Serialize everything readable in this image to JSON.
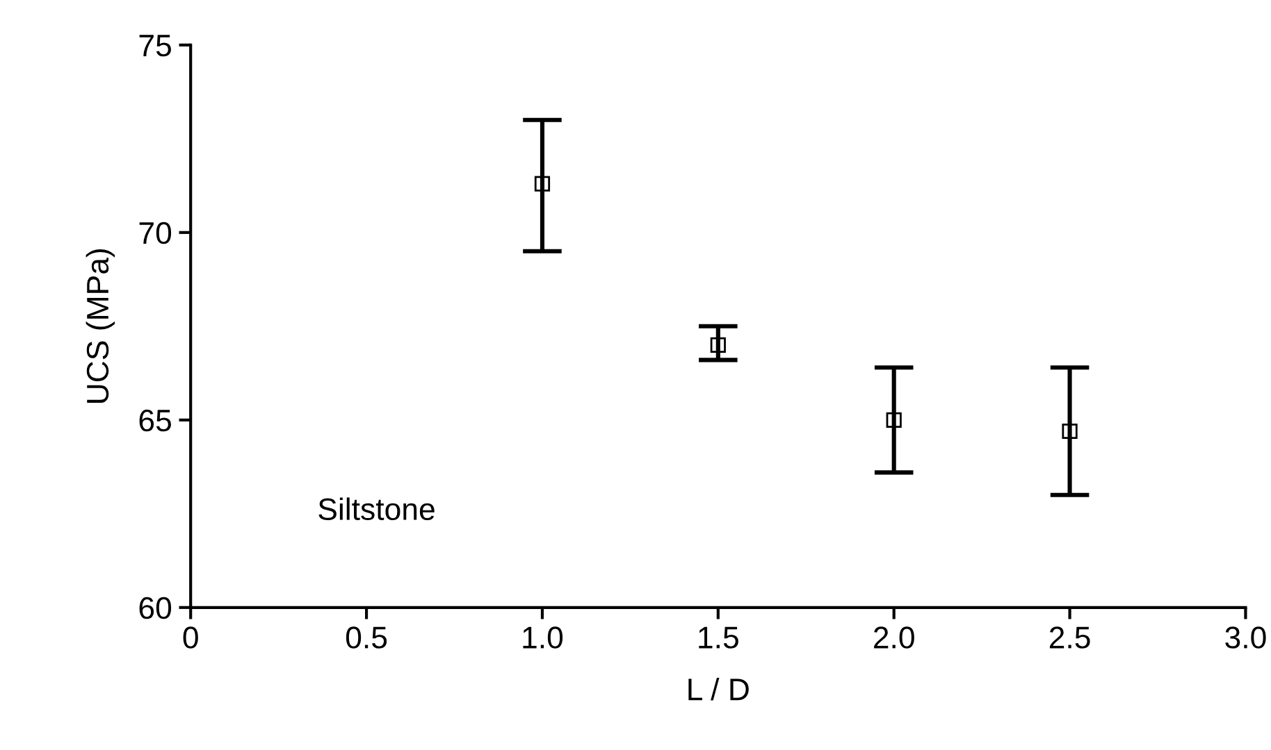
{
  "chart_data": {
    "type": "scatter",
    "xlabel": "L / D",
    "ylabel": "UCS (MPa)",
    "x": [
      1.0,
      1.5,
      2.0,
      2.5
    ],
    "values": [
      71.3,
      67.0,
      65.0,
      64.7
    ],
    "errors": [
      [
        69.5,
        73.0
      ],
      [
        66.6,
        67.5
      ],
      [
        63.6,
        66.4
      ],
      [
        63.0,
        66.4
      ]
    ],
    "color": "#000000",
    "marker": "square",
    "xlim": [
      0,
      3.0
    ],
    "xticks": [
      0,
      0.5,
      {
        "value": 1.0,
        "label": "1.0"
      },
      1.5,
      {
        "value": 2.0,
        "label": "2.0"
      },
      2.5,
      {
        "value": 3.0,
        "label": "3.0"
      }
    ],
    "ylim": [
      60,
      75
    ],
    "yticks": [
      60,
      65,
      70,
      75
    ],
    "annotations": [
      "Siltstone"
    ],
    "grid": false,
    "legend": false
  }
}
